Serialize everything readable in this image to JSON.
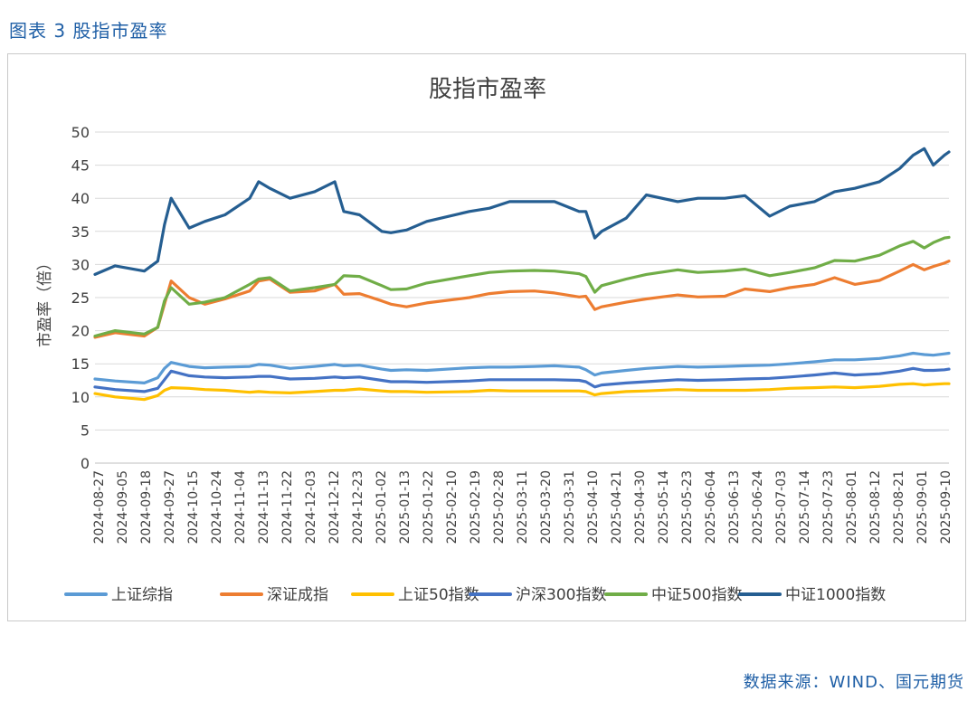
{
  "figure_label": "图表 3 股指市盈率",
  "source": "数据来源：WIND、国元期货",
  "colors": {
    "上证综指": "#5b9bd5",
    "深证成指": "#ed7d31",
    "上证50指数": "#ffc000",
    "沪深300指数": "#4472c4",
    "中证500指数": "#70ad47",
    "中证1000指数": "#255e91"
  },
  "chart_data": {
    "type": "line",
    "title": "股指市盈率",
    "ylabel": "市盈率（倍）",
    "xlabel": "",
    "ylim": [
      0,
      50
    ],
    "yticks": [
      0,
      5,
      10,
      15,
      20,
      25,
      30,
      35,
      40,
      45,
      50
    ],
    "grid": true,
    "legend": "bottom",
    "x_tick_labels": [
      "2024-08-27",
      "2024-09-05",
      "2024-09-18",
      "2024-09-27",
      "2024-10-15",
      "2024-10-24",
      "2024-11-04",
      "2024-11-13",
      "2024-11-22",
      "2024-12-03",
      "2024-12-12",
      "2024-12-23",
      "2025-01-02",
      "2025-01-13",
      "2025-01-22",
      "2025-02-10",
      "2025-02-19",
      "2025-02-28",
      "2025-03-11",
      "2025-03-20",
      "2025-03-31",
      "2025-04-10",
      "2025-04-21",
      "2025-04-30",
      "2025-05-14",
      "2025-05-23",
      "2025-06-04",
      "2025-06-13",
      "2025-06-24",
      "2025-07-03",
      "2025-07-14",
      "2025-07-23",
      "2025-08-01",
      "2025-08-12",
      "2025-08-21",
      "2025-09-01",
      "2025-09-10"
    ],
    "x": [
      "2024-08-27",
      "2024-09-05",
      "2024-09-18",
      "2024-09-24",
      "2024-09-27",
      "2024-09-30",
      "2024-10-08",
      "2024-10-15",
      "2024-10-24",
      "2024-11-04",
      "2024-11-08",
      "2024-11-13",
      "2024-11-22",
      "2024-12-03",
      "2024-12-12",
      "2024-12-16",
      "2024-12-23",
      "2025-01-02",
      "2025-01-06",
      "2025-01-13",
      "2025-01-22",
      "2025-02-10",
      "2025-02-19",
      "2025-02-28",
      "2025-03-11",
      "2025-03-20",
      "2025-03-31",
      "2025-04-03",
      "2025-04-07",
      "2025-04-10",
      "2025-04-21",
      "2025-04-30",
      "2025-05-14",
      "2025-05-23",
      "2025-06-04",
      "2025-06-13",
      "2025-06-24",
      "2025-07-03",
      "2025-07-14",
      "2025-07-23",
      "2025-08-01",
      "2025-08-12",
      "2025-08-21",
      "2025-08-27",
      "2025-09-01",
      "2025-09-05",
      "2025-09-10",
      "2025-09-12"
    ],
    "series": [
      {
        "name": "上证综指",
        "values": [
          12.7,
          12.4,
          12.1,
          12.9,
          14.3,
          15.2,
          14.6,
          14.4,
          14.5,
          14.6,
          14.9,
          14.8,
          14.3,
          14.6,
          14.9,
          14.7,
          14.8,
          14.2,
          14.0,
          14.1,
          14.0,
          14.4,
          14.5,
          14.5,
          14.6,
          14.7,
          14.5,
          14.1,
          13.3,
          13.6,
          14.0,
          14.3,
          14.6,
          14.5,
          14.6,
          14.7,
          14.8,
          15.0,
          15.3,
          15.6,
          15.6,
          15.8,
          16.2,
          16.6,
          16.4,
          16.3,
          16.5,
          16.6
        ]
      },
      {
        "name": "深证成指",
        "values": [
          19.0,
          19.7,
          19.2,
          20.5,
          24.0,
          27.5,
          25.0,
          24.0,
          24.8,
          26.0,
          27.5,
          27.8,
          25.8,
          26.0,
          27.0,
          25.5,
          25.6,
          24.5,
          24.0,
          23.6,
          24.2,
          25.0,
          25.6,
          25.9,
          26.0,
          25.7,
          25.1,
          25.2,
          23.2,
          23.6,
          24.3,
          24.8,
          25.4,
          25.1,
          25.2,
          26.3,
          25.9,
          26.5,
          27.0,
          28.0,
          27.0,
          27.6,
          29.0,
          30.0,
          29.2,
          29.7,
          30.2,
          30.5
        ]
      },
      {
        "name": "上证50指数",
        "values": [
          10.5,
          10.0,
          9.6,
          10.2,
          11.0,
          11.4,
          11.3,
          11.1,
          11.0,
          10.7,
          10.8,
          10.7,
          10.6,
          10.8,
          11.0,
          11.0,
          11.2,
          10.9,
          10.8,
          10.8,
          10.7,
          10.8,
          11.0,
          10.9,
          10.9,
          10.9,
          10.9,
          10.8,
          10.3,
          10.5,
          10.8,
          10.9,
          11.1,
          11.0,
          11.0,
          11.0,
          11.1,
          11.3,
          11.4,
          11.5,
          11.4,
          11.6,
          11.9,
          12.0,
          11.8,
          11.9,
          12.0,
          12.0
        ]
      },
      {
        "name": "沪深300指数",
        "values": [
          11.5,
          11.1,
          10.8,
          11.3,
          12.6,
          13.9,
          13.2,
          13.0,
          12.9,
          13.0,
          13.1,
          13.1,
          12.7,
          12.8,
          13.0,
          12.9,
          13.0,
          12.5,
          12.3,
          12.3,
          12.2,
          12.4,
          12.6,
          12.6,
          12.6,
          12.6,
          12.5,
          12.3,
          11.5,
          11.8,
          12.1,
          12.3,
          12.6,
          12.5,
          12.6,
          12.7,
          12.8,
          13.0,
          13.3,
          13.6,
          13.3,
          13.5,
          13.9,
          14.3,
          14.0,
          14.0,
          14.1,
          14.2
        ]
      },
      {
        "name": "中证500指数",
        "values": [
          19.2,
          20.0,
          19.5,
          20.5,
          24.5,
          26.5,
          24.0,
          24.3,
          25.0,
          27.0,
          27.8,
          28.0,
          26.0,
          26.5,
          27.0,
          28.3,
          28.2,
          26.8,
          26.2,
          26.3,
          27.2,
          28.3,
          28.8,
          29.0,
          29.1,
          29.0,
          28.6,
          28.2,
          25.8,
          26.8,
          27.8,
          28.5,
          29.2,
          28.8,
          29.0,
          29.3,
          28.3,
          28.8,
          29.5,
          30.6,
          30.5,
          31.4,
          32.8,
          33.5,
          32.5,
          33.3,
          34.0,
          34.1
        ]
      },
      {
        "name": "中证1000指数",
        "values": [
          28.5,
          29.8,
          29.0,
          30.5,
          36.0,
          40.0,
          35.5,
          36.5,
          37.5,
          40.0,
          42.5,
          41.5,
          40.0,
          41.0,
          42.5,
          38.0,
          37.5,
          35.0,
          34.8,
          35.2,
          36.5,
          38.0,
          38.5,
          39.5,
          39.5,
          39.5,
          38.0,
          38.0,
          34.0,
          35.0,
          37.0,
          40.5,
          39.5,
          40.0,
          40.0,
          40.4,
          37.3,
          38.8,
          39.5,
          41.0,
          41.5,
          42.5,
          44.5,
          46.5,
          47.5,
          45.0,
          46.5,
          47.0
        ]
      }
    ]
  }
}
